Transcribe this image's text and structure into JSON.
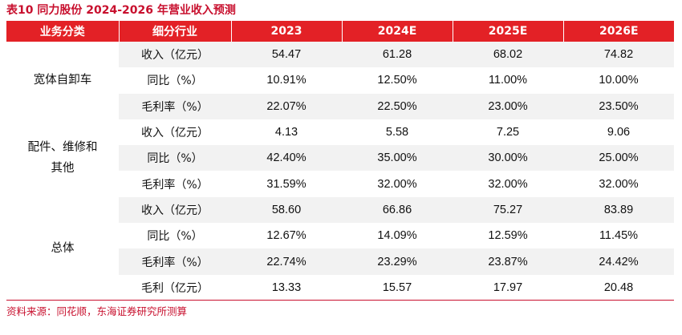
{
  "title": "表10  同力股份 2024-2026 年营业收入预测",
  "headers": [
    "业务分类",
    "细分行业",
    "2023",
    "2024E",
    "2025E",
    "2026E"
  ],
  "groups": [
    {
      "name_lines": [
        "宽体自卸车"
      ],
      "rows": [
        {
          "label": "收入（亿元）",
          "values": [
            "54.47",
            "61.28",
            "68.02",
            "74.82"
          ]
        },
        {
          "label": "同比（%）",
          "values": [
            "10.91%",
            "12.50%",
            "11.00%",
            "10.00%"
          ]
        },
        {
          "label": "毛利率（%）",
          "values": [
            "22.07%",
            "22.50%",
            "23.00%",
            "23.50%"
          ]
        }
      ]
    },
    {
      "name_lines": [
        "配件、维修和",
        "其他"
      ],
      "rows": [
        {
          "label": "收入（亿元）",
          "values": [
            "4.13",
            "5.58",
            "7.25",
            "9.06"
          ]
        },
        {
          "label": "同比（%）",
          "values": [
            "42.40%",
            "35.00%",
            "30.00%",
            "25.00%"
          ]
        },
        {
          "label": "毛利率（%）",
          "values": [
            "31.59%",
            "32.00%",
            "32.00%",
            "32.00%"
          ]
        }
      ]
    },
    {
      "name_lines": [
        "总体"
      ],
      "rows": [
        {
          "label": "收入（亿元）",
          "values": [
            "58.60",
            "66.86",
            "75.27",
            "83.89"
          ]
        },
        {
          "label": "同比（%）",
          "values": [
            "12.67%",
            "14.09%",
            "12.59%",
            "11.45%"
          ]
        },
        {
          "label": "毛利率（%）",
          "values": [
            "22.74%",
            "23.29%",
            "23.87%",
            "24.42%"
          ]
        },
        {
          "label": "毛利（亿元）",
          "values": [
            "13.33",
            "15.57",
            "17.97",
            "20.48"
          ]
        }
      ]
    }
  ],
  "source": "资料来源：同花顺，东海证券研究所测算",
  "colors": {
    "accent": "#e32126",
    "stripe": "#f2f2f2"
  }
}
